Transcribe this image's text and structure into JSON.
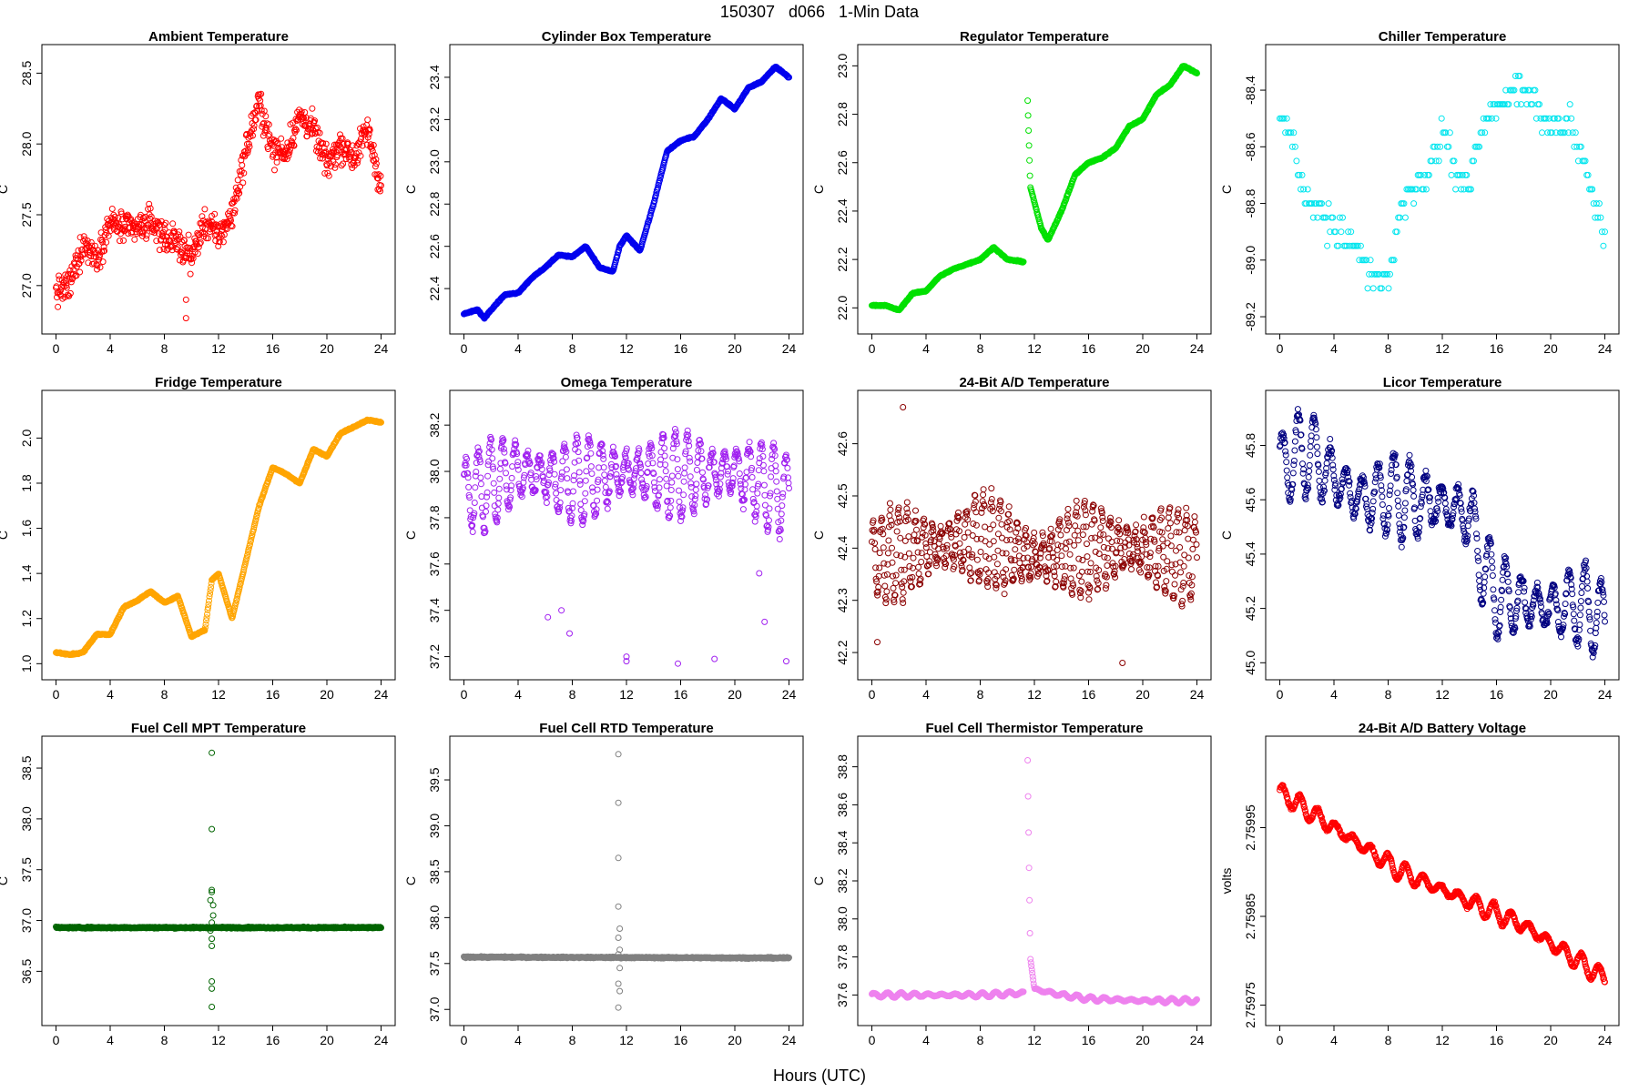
{
  "figure": {
    "title": "150307   d066   1-Min Data",
    "xlabel": "Hours (UTC)"
  },
  "chart_data": [
    {
      "type": "scatter",
      "title": "Ambient Temperature",
      "ylabel": "C",
      "xlim": [
        0,
        24
      ],
      "ylim": [
        26.74,
        28.62
      ],
      "xticks": [
        "0",
        "4",
        "8",
        "12",
        "16",
        "20",
        "24"
      ],
      "yticks": [
        "27.0",
        "27.5",
        "28.0",
        "28.5"
      ],
      "color": "#ff0000",
      "pattern": "noisy",
      "amp": 0.18,
      "outliers": [
        [
          9.6,
          26.77
        ],
        [
          9.6,
          26.9
        ]
      ],
      "gaps": [],
      "series": [
        [
          0,
          26.95
        ],
        [
          1,
          27.0
        ],
        [
          2,
          27.3
        ],
        [
          3,
          27.2
        ],
        [
          4,
          27.45
        ],
        [
          5,
          27.4
        ],
        [
          6,
          27.4
        ],
        [
          7,
          27.45
        ],
        [
          8,
          27.35
        ],
        [
          9,
          27.3
        ],
        [
          10,
          27.2
        ],
        [
          11,
          27.45
        ],
        [
          12,
          27.35
        ],
        [
          13,
          27.5
        ],
        [
          14,
          27.95
        ],
        [
          15,
          28.3
        ],
        [
          16,
          27.95
        ],
        [
          17,
          27.95
        ],
        [
          18,
          28.2
        ],
        [
          19,
          28.1
        ],
        [
          20,
          27.85
        ],
        [
          21,
          28.0
        ],
        [
          22,
          27.9
        ],
        [
          23,
          28.1
        ],
        [
          24,
          27.7
        ]
      ]
    },
    {
      "type": "scatter",
      "title": "Cylinder Box Temperature",
      "ylabel": "C",
      "xlim": [
        0,
        24
      ],
      "ylim": [
        22.24,
        23.5
      ],
      "xticks": [
        "0",
        "4",
        "8",
        "12",
        "16",
        "20",
        "24"
      ],
      "yticks": [
        "22.4",
        "22.6",
        "22.8",
        "23.0",
        "23.2",
        "23.4"
      ],
      "color": "#0000ee",
      "pattern": "smooth",
      "amp": 0.005,
      "outliers": [],
      "gaps": [],
      "series": [
        [
          0,
          22.28
        ],
        [
          1,
          22.3
        ],
        [
          1.5,
          22.26
        ],
        [
          2,
          22.3
        ],
        [
          3,
          22.37
        ],
        [
          4,
          22.38
        ],
        [
          5,
          22.45
        ],
        [
          6,
          22.5
        ],
        [
          7,
          22.56
        ],
        [
          8,
          22.55
        ],
        [
          9,
          22.6
        ],
        [
          10,
          22.5
        ],
        [
          11,
          22.48
        ],
        [
          11.5,
          22.6
        ],
        [
          12,
          22.65
        ],
        [
          13,
          22.58
        ],
        [
          14,
          22.8
        ],
        [
          15,
          23.05
        ],
        [
          16,
          23.1
        ],
        [
          17,
          23.12
        ],
        [
          18,
          23.2
        ],
        [
          19,
          23.3
        ],
        [
          20,
          23.25
        ],
        [
          21,
          23.35
        ],
        [
          22,
          23.38
        ],
        [
          23,
          23.45
        ],
        [
          24,
          23.4
        ]
      ]
    },
    {
      "type": "scatter",
      "title": "Regulator Temperature",
      "ylabel": "C",
      "xlim": [
        0,
        24
      ],
      "ylim": [
        21.94,
        23.04
      ],
      "xticks": [
        "0",
        "4",
        "8",
        "12",
        "16",
        "20",
        "24"
      ],
      "yticks": [
        "22.0",
        "22.2",
        "22.4",
        "22.6",
        "22.8",
        "23.0"
      ],
      "color": "#00e000",
      "pattern": "smooth",
      "amp": 0.004,
      "outliers": [],
      "gaps": [
        [
          11.2,
          11.5
        ]
      ],
      "series": [
        [
          0,
          22.01
        ],
        [
          1,
          22.01
        ],
        [
          2,
          21.99
        ],
        [
          3,
          22.06
        ],
        [
          4,
          22.07
        ],
        [
          5,
          22.13
        ],
        [
          6,
          22.16
        ],
        [
          7,
          22.18
        ],
        [
          8,
          22.2
        ],
        [
          9,
          22.25
        ],
        [
          10,
          22.2
        ],
        [
          11.2,
          22.19
        ],
        [
          11.5,
          22.86
        ],
        [
          11.7,
          22.5
        ],
        [
          12.5,
          22.33
        ],
        [
          13,
          22.28
        ],
        [
          14,
          22.4
        ],
        [
          15,
          22.55
        ],
        [
          16,
          22.6
        ],
        [
          17,
          22.62
        ],
        [
          18,
          22.66
        ],
        [
          19,
          22.75
        ],
        [
          20,
          22.78
        ],
        [
          21,
          22.88
        ],
        [
          22,
          22.92
        ],
        [
          23,
          23.0
        ],
        [
          24,
          22.97
        ]
      ]
    },
    {
      "type": "scatter",
      "title": "Chiller Temperature",
      "ylabel": "C",
      "xlim": [
        0,
        24
      ],
      "ylim": [
        -89.22,
        -88.28
      ],
      "xticks": [
        "0",
        "4",
        "8",
        "12",
        "16",
        "20",
        "24"
      ],
      "yticks": [
        "-88.4",
        "-88.6",
        "-88.8",
        "-89.0",
        "-89.2"
      ],
      "color": "#00e5ee",
      "pattern": "quantized",
      "amp": 0.1,
      "outliers": [],
      "gaps": [],
      "series": [
        [
          0,
          -88.45
        ],
        [
          1,
          -88.6
        ],
        [
          2,
          -88.8
        ],
        [
          3,
          -88.8
        ],
        [
          4,
          -88.9
        ],
        [
          5,
          -88.9
        ],
        [
          6,
          -89.0
        ],
        [
          7,
          -89.05
        ],
        [
          8,
          -89.1
        ],
        [
          9,
          -88.8
        ],
        [
          10,
          -88.75
        ],
        [
          11,
          -88.7
        ],
        [
          12,
          -88.55
        ],
        [
          13,
          -88.7
        ],
        [
          14,
          -88.75
        ],
        [
          15,
          -88.5
        ],
        [
          16,
          -88.45
        ],
        [
          17,
          -88.4
        ],
        [
          18,
          -88.4
        ],
        [
          19,
          -88.45
        ],
        [
          20,
          -88.55
        ],
        [
          21,
          -88.5
        ],
        [
          22,
          -88.6
        ],
        [
          23,
          -88.75
        ],
        [
          24,
          -88.9
        ]
      ]
    },
    {
      "type": "scatter",
      "title": "Fridge Temperature",
      "ylabel": "C",
      "xlim": [
        0,
        24
      ],
      "ylim": [
        0.98,
        2.16
      ],
      "xticks": [
        "0",
        "4",
        "8",
        "12",
        "16",
        "20",
        "24"
      ],
      "yticks": [
        "1.0",
        "1.2",
        "1.4",
        "1.6",
        "1.8",
        "2.0"
      ],
      "color": "#ffa500",
      "pattern": "smooth",
      "amp": 0.005,
      "outliers": [],
      "gaps": [],
      "series": [
        [
          0,
          1.05
        ],
        [
          1,
          1.04
        ],
        [
          2,
          1.05
        ],
        [
          3,
          1.13
        ],
        [
          4,
          1.13
        ],
        [
          5,
          1.25
        ],
        [
          6,
          1.28
        ],
        [
          7,
          1.32
        ],
        [
          8,
          1.27
        ],
        [
          9,
          1.3
        ],
        [
          10,
          1.12
        ],
        [
          11,
          1.15
        ],
        [
          11.5,
          1.37
        ],
        [
          12,
          1.4
        ],
        [
          13,
          1.2
        ],
        [
          14,
          1.45
        ],
        [
          15,
          1.7
        ],
        [
          16,
          1.87
        ],
        [
          17,
          1.84
        ],
        [
          18,
          1.8
        ],
        [
          19,
          1.95
        ],
        [
          20,
          1.92
        ],
        [
          21,
          2.02
        ],
        [
          22,
          2.05
        ],
        [
          23,
          2.08
        ],
        [
          24,
          2.07
        ]
      ]
    },
    {
      "type": "scatter",
      "title": "Omega Temperature",
      "ylabel": "C",
      "xlim": [
        0,
        24
      ],
      "ylim": [
        37.15,
        38.3
      ],
      "xticks": [
        "0",
        "4",
        "8",
        "12",
        "16",
        "20",
        "24"
      ],
      "yticks": [
        "37.2",
        "37.4",
        "37.6",
        "37.8",
        "38.0",
        "38.2"
      ],
      "color": "#a020f0",
      "pattern": "oscillate",
      "amp": 0.19,
      "freq": 1.1,
      "outliers": [
        [
          6.2,
          37.37
        ],
        [
          7.2,
          37.4
        ],
        [
          7.8,
          37.3
        ],
        [
          12,
          37.2
        ],
        [
          12,
          37.18
        ],
        [
          15.8,
          37.17
        ],
        [
          18.5,
          37.19
        ],
        [
          21.8,
          37.56
        ],
        [
          22.2,
          37.35
        ],
        [
          23.8,
          37.18
        ]
      ],
      "gaps": [],
      "series": [
        [
          0,
          37.9
        ],
        [
          4,
          38.0
        ],
        [
          8,
          37.95
        ],
        [
          12,
          38.0
        ],
        [
          16,
          37.98
        ],
        [
          20,
          38.0
        ],
        [
          24,
          37.9
        ]
      ]
    },
    {
      "type": "scatter",
      "title": "24-Bit A/D Temperature",
      "ylabel": "C",
      "xlim": [
        0,
        24
      ],
      "ylim": [
        42.17,
        42.68
      ],
      "xticks": [
        "0",
        "4",
        "8",
        "12",
        "16",
        "20",
        "24"
      ],
      "yticks": [
        "42.2",
        "42.3",
        "42.4",
        "42.5",
        "42.6"
      ],
      "color": "#8b0000",
      "pattern": "oscillate",
      "amp": 0.09,
      "freq": 1.6,
      "outliers": [
        [
          2.3,
          42.67
        ],
        [
          18.5,
          42.18
        ],
        [
          0.4,
          42.22
        ]
      ],
      "gaps": [],
      "series": [
        [
          0,
          42.38
        ],
        [
          4,
          42.4
        ],
        [
          8,
          42.42
        ],
        [
          12,
          42.38
        ],
        [
          16,
          42.4
        ],
        [
          20,
          42.4
        ],
        [
          24,
          42.38
        ]
      ]
    },
    {
      "type": "scatter",
      "title": "Licor Temperature",
      "ylabel": "C",
      "xlim": [
        0,
        24
      ],
      "ylim": [
        44.98,
        45.96
      ],
      "xticks": [
        "0",
        "4",
        "8",
        "12",
        "16",
        "20",
        "24"
      ],
      "yticks": [
        "45.0",
        "45.2",
        "45.4",
        "45.6",
        "45.8"
      ],
      "color": "#000080",
      "pattern": "oscillate",
      "amp": 0.16,
      "freq": 0.85,
      "outliers": [],
      "gaps": [],
      "series": [
        [
          0,
          45.72
        ],
        [
          2,
          45.78
        ],
        [
          4,
          45.68
        ],
        [
          6,
          45.6
        ],
        [
          8,
          45.62
        ],
        [
          10,
          45.6
        ],
        [
          12,
          45.58
        ],
        [
          14,
          45.55
        ],
        [
          15,
          45.35
        ],
        [
          16,
          45.25
        ],
        [
          18,
          45.22
        ],
        [
          20,
          45.2
        ],
        [
          22,
          45.22
        ],
        [
          24,
          45.16
        ]
      ]
    },
    {
      "type": "scatter",
      "title": "Fuel Cell MPT Temperature",
      "ylabel": "C",
      "xlim": [
        0,
        24
      ],
      "ylim": [
        36.08,
        38.7
      ],
      "xticks": [
        "0",
        "4",
        "8",
        "12",
        "16",
        "20",
        "24"
      ],
      "yticks": [
        "36.5",
        "37.0",
        "37.5",
        "38.0",
        "38.5"
      ],
      "color": "#006400",
      "pattern": "flat",
      "amp": 0.012,
      "outliers": [
        [
          11.5,
          38.65
        ],
        [
          11.5,
          37.9
        ],
        [
          11.5,
          37.3
        ],
        [
          11.5,
          37.28
        ],
        [
          11.6,
          37.05
        ],
        [
          11.5,
          36.98
        ],
        [
          11.4,
          36.9
        ],
        [
          11.5,
          36.82
        ],
        [
          11.5,
          36.75
        ],
        [
          11.5,
          36.4
        ],
        [
          11.5,
          36.33
        ],
        [
          11.5,
          36.15
        ],
        [
          11.6,
          37.15
        ],
        [
          11.4,
          37.2
        ]
      ],
      "gaps": [],
      "series": [
        [
          0,
          36.93
        ],
        [
          24,
          36.93
        ]
      ]
    },
    {
      "type": "scatter",
      "title": "Fuel Cell RTD Temperature",
      "ylabel": "C",
      "xlim": [
        0,
        24
      ],
      "ylim": [
        36.95,
        39.85
      ],
      "xticks": [
        "0",
        "4",
        "8",
        "12",
        "16",
        "20",
        "24"
      ],
      "yticks": [
        "37.0",
        "37.5",
        "38.0",
        "38.5",
        "39.0",
        "39.5"
      ],
      "color": "#808080",
      "pattern": "flat",
      "amp": 0.012,
      "outliers": [
        [
          11.4,
          39.78
        ],
        [
          11.4,
          39.25
        ],
        [
          11.4,
          38.65
        ],
        [
          11.4,
          38.12
        ],
        [
          11.5,
          37.88
        ],
        [
          11.4,
          37.78
        ],
        [
          11.5,
          37.65
        ],
        [
          11.4,
          37.6
        ],
        [
          11.5,
          37.45
        ],
        [
          11.4,
          37.28
        ],
        [
          11.5,
          37.2
        ],
        [
          11.4,
          37.02
        ]
      ],
      "gaps": [],
      "series": [
        [
          0,
          37.57
        ],
        [
          24,
          37.56
        ]
      ]
    },
    {
      "type": "scatter",
      "title": "Fuel Cell Thermistor Temperature",
      "ylabel": "C",
      "xlim": [
        0,
        24
      ],
      "ylim": [
        37.5,
        38.9
      ],
      "xticks": [
        "0",
        "4",
        "8",
        "12",
        "16",
        "20",
        "24"
      ],
      "yticks": [
        "37.6",
        "37.8",
        "38.0",
        "38.2",
        "38.4",
        "38.6",
        "38.8"
      ],
      "color": "#ee82ee",
      "pattern": "oscillate",
      "amp": 0.013,
      "freq": 1.0,
      "outliers": [],
      "gaps": [
        [
          11.2,
          11.5
        ]
      ],
      "series": [
        [
          0,
          37.6
        ],
        [
          4,
          37.6
        ],
        [
          8,
          37.6
        ],
        [
          11.2,
          37.61
        ],
        [
          11.5,
          38.85
        ],
        [
          11.6,
          38.3
        ],
        [
          11.7,
          37.8
        ],
        [
          12,
          37.63
        ],
        [
          14,
          37.6
        ],
        [
          16,
          37.58
        ],
        [
          20,
          37.57
        ],
        [
          24,
          37.57
        ]
      ]
    },
    {
      "type": "scatter",
      "title": "24-Bit A/D Battery Voltage",
      "ylabel": "volts",
      "xlim": [
        0,
        24
      ],
      "ylim": [
        2.75974,
        2.76004
      ],
      "xticks": [
        "0",
        "4",
        "8",
        "12",
        "16",
        "20",
        "24"
      ],
      "yticks": [
        "2.75975",
        "2.75985",
        "2.75995"
      ],
      "color": "#ff0000",
      "pattern": "oscillate",
      "amp": 1.1e-05,
      "freq": 0.77,
      "outliers": [],
      "gaps": [],
      "series": [
        [
          0,
          2.75999
        ],
        [
          3,
          2.75996
        ],
        [
          6,
          2.75993
        ],
        [
          9,
          2.7599
        ],
        [
          12,
          2.75988
        ],
        [
          15,
          2.75986
        ],
        [
          18,
          2.75984
        ],
        [
          21,
          2.75981
        ],
        [
          24,
          2.75978
        ]
      ]
    }
  ]
}
